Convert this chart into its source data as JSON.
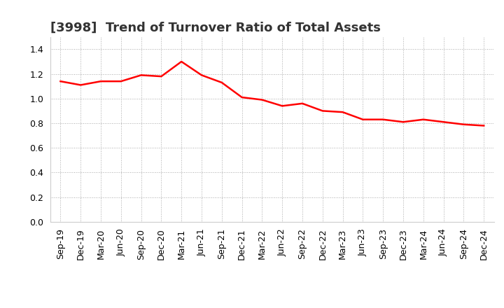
{
  "title": "[3998]  Trend of Turnover Ratio of Total Assets",
  "x_labels": [
    "Sep-19",
    "Dec-19",
    "Mar-20",
    "Jun-20",
    "Sep-20",
    "Dec-20",
    "Mar-21",
    "Jun-21",
    "Sep-21",
    "Dec-21",
    "Mar-22",
    "Jun-22",
    "Sep-22",
    "Dec-22",
    "Mar-23",
    "Jun-23",
    "Sep-23",
    "Dec-23",
    "Mar-24",
    "Jun-24",
    "Sep-24",
    "Dec-24"
  ],
  "y_values": [
    1.14,
    1.11,
    1.14,
    1.14,
    1.19,
    1.18,
    1.3,
    1.19,
    1.13,
    1.01,
    0.99,
    0.94,
    0.96,
    0.9,
    0.89,
    0.83,
    0.83,
    0.81,
    0.83,
    0.81,
    0.79,
    0.78
  ],
  "line_color": "#FF0000",
  "line_width": 1.8,
  "ylim": [
    0.0,
    1.5
  ],
  "yticks": [
    0.0,
    0.2,
    0.4,
    0.6,
    0.8,
    1.0,
    1.2,
    1.4
  ],
  "grid_color": "#aaaaaa",
  "grid_style": "dotted",
  "background_color": "#ffffff",
  "title_fontsize": 13,
  "tick_fontsize": 9
}
